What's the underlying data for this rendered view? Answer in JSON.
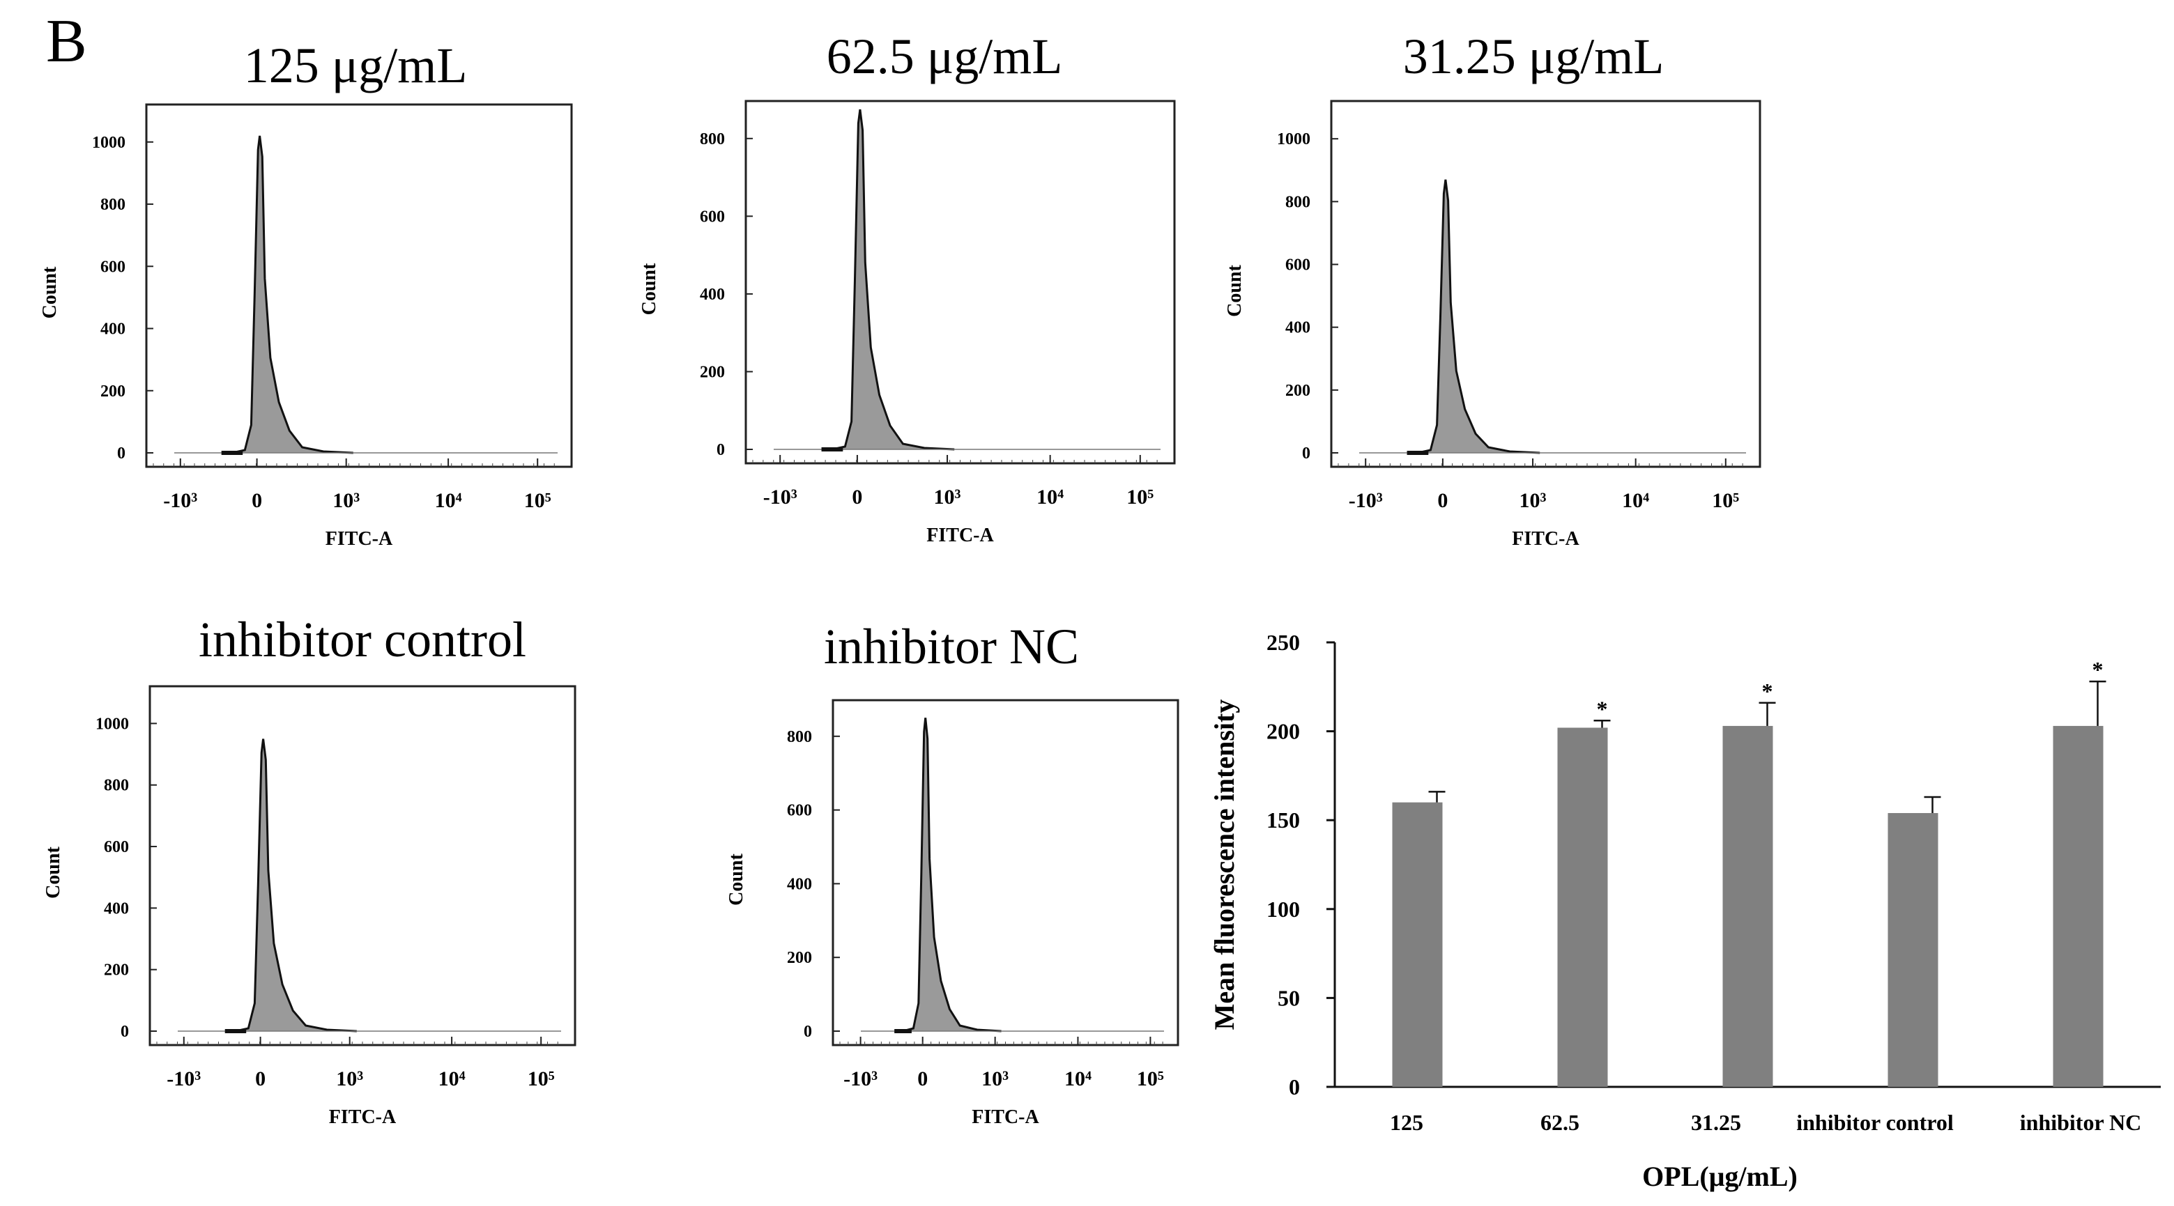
{
  "panel_label": "B",
  "chart_data": [
    {
      "type": "area",
      "title": "125 μg/mL",
      "xlabel": "FITC-A",
      "ylabel": "Count",
      "xticks": [
        "-10³",
        "0",
        "10³",
        "10⁴",
        "10⁵"
      ],
      "yticks": [
        0,
        200,
        400,
        600,
        800,
        1000
      ],
      "ylim": [
        0,
        1000
      ],
      "peak_count": 1020,
      "peak_position": 0
    },
    {
      "type": "area",
      "title": "62.5 μg/mL",
      "xlabel": "FITC-A",
      "ylabel": "Count",
      "xticks": [
        "-10³",
        "0",
        "10³",
        "10⁴",
        "10⁵"
      ],
      "yticks": [
        0,
        200,
        400,
        600,
        800
      ],
      "ylim": [
        0,
        800
      ],
      "peak_count": 875,
      "peak_position": 0
    },
    {
      "type": "area",
      "title": "31.25 μg/mL",
      "xlabel": "FITC-A",
      "ylabel": "Count",
      "xticks": [
        "-10³",
        "0",
        "10³",
        "10⁴",
        "10⁵"
      ],
      "yticks": [
        0,
        200,
        400,
        600,
        800,
        1000
      ],
      "ylim": [
        0,
        1000
      ],
      "peak_count": 870,
      "peak_position": 0
    },
    {
      "type": "area",
      "title": "inhibitor control",
      "xlabel": "FITC-A",
      "ylabel": "Count",
      "xticks": [
        "-10³",
        "0",
        "10³",
        "10⁴",
        "10⁵"
      ],
      "yticks": [
        0,
        200,
        400,
        600,
        800,
        1000
      ],
      "ylim": [
        0,
        1000
      ],
      "peak_count": 950,
      "peak_position": 0
    },
    {
      "type": "area",
      "title": "inhibitor NC",
      "xlabel": "FITC-A",
      "ylabel": "Count",
      "xticks": [
        "-10³",
        "0",
        "10³",
        "10⁴",
        "10⁵"
      ],
      "yticks": [
        0,
        200,
        400,
        600,
        800
      ],
      "ylim": [
        0,
        800
      ],
      "peak_count": 850,
      "peak_position": 0
    },
    {
      "type": "bar",
      "title": "",
      "xlabel": "OPL(μg/mL)",
      "ylabel": "Mean fluorescence intensity",
      "categories": [
        "125",
        "62.5",
        "31.25",
        "inhibitor control",
        "inhibitor NC"
      ],
      "values": [
        160,
        202,
        203,
        154,
        203
      ],
      "errors": [
        6,
        4,
        13,
        9,
        25
      ],
      "significance": [
        "",
        "*",
        "*",
        "",
        "*"
      ],
      "yticks": [
        0,
        50,
        100,
        150,
        200,
        250
      ],
      "ylim": [
        0,
        250
      ],
      "bar_color": "#808080"
    }
  ]
}
